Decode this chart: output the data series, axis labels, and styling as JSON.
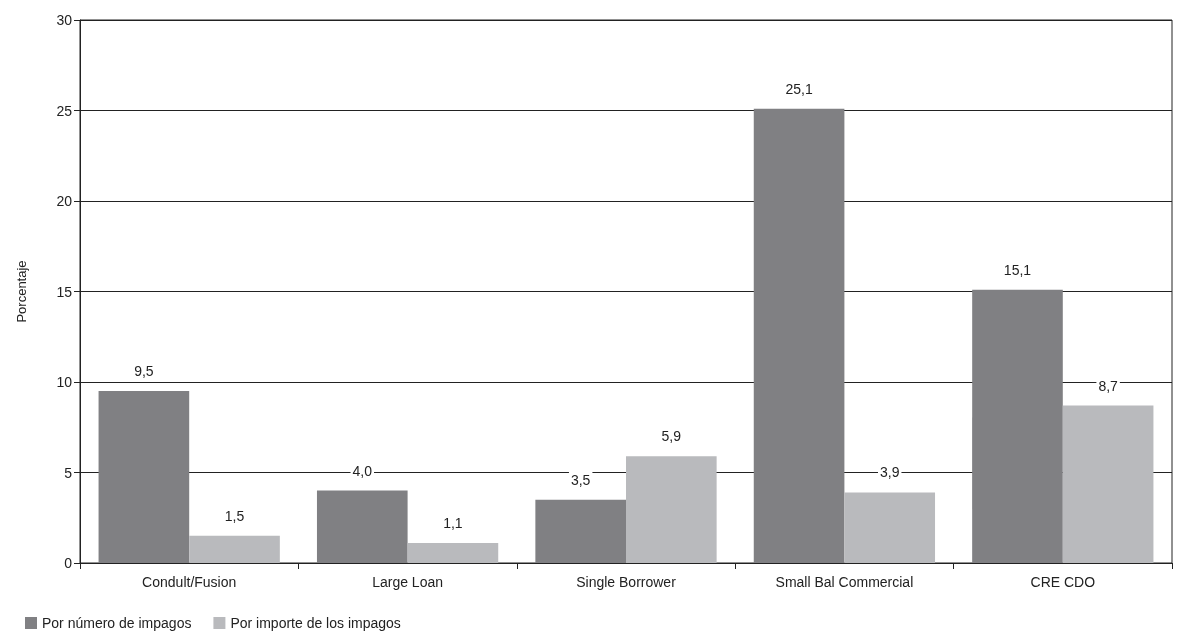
{
  "chart_data": {
    "type": "bar",
    "ylabel": "Porcentaje",
    "categories": [
      "Condult/Fusion",
      "Large Loan",
      "Single Borrower",
      "Small Bal Commercial",
      "CRE CDO"
    ],
    "series": [
      {
        "name": "Por número de impagos",
        "color": "#808083",
        "values": [
          9.5,
          4.0,
          3.5,
          25.1,
          15.1
        ],
        "value_labels": [
          "9,5",
          "4,0",
          "3,5",
          "25,1",
          "15,1"
        ]
      },
      {
        "name": "Por importe de los impagos",
        "color": "#b9babd",
        "values": [
          1.5,
          1.1,
          5.9,
          3.9,
          8.7
        ],
        "value_labels": [
          "1,5",
          "1,1",
          "5,9",
          "3,9",
          "8,7"
        ]
      }
    ],
    "ylim": [
      0,
      30
    ],
    "yticks": [
      0,
      5,
      10,
      15,
      20,
      25,
      30
    ],
    "grid": "y",
    "legend": "bottom left"
  }
}
